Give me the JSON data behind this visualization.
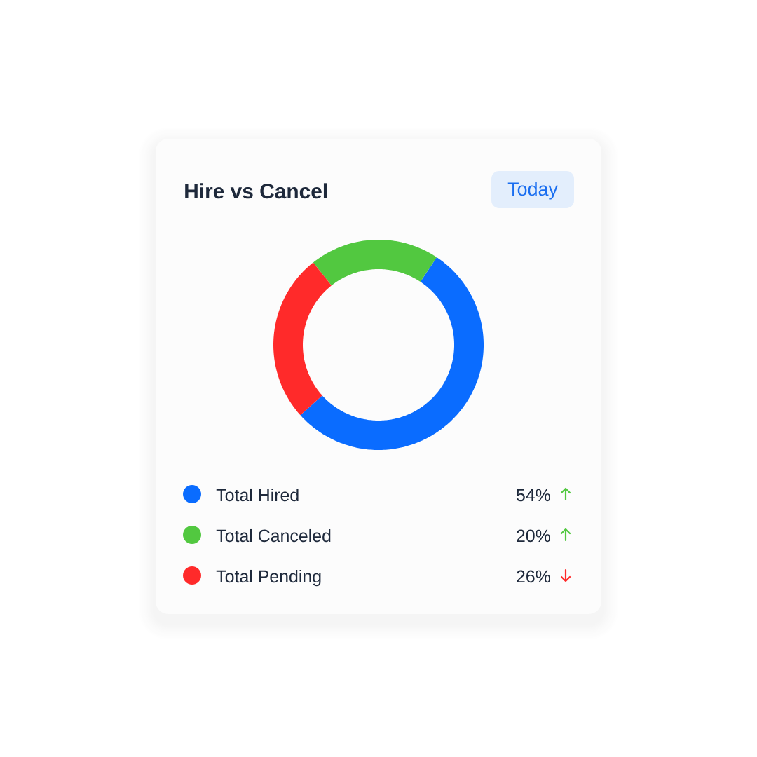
{
  "chart_data": {
    "type": "donut",
    "title": "Hire vs Cancel",
    "categories": [
      "Total Hired",
      "Total Canceled",
      "Total Pending"
    ],
    "values": [
      54,
      20,
      26
    ],
    "colors": [
      "#0a6cff",
      "#52c840",
      "#ff2a2a"
    ],
    "value_labels": [
      "54%",
      "20%",
      "26%"
    ],
    "legend": "bottom",
    "annotations": [
      "Today"
    ]
  }
}
